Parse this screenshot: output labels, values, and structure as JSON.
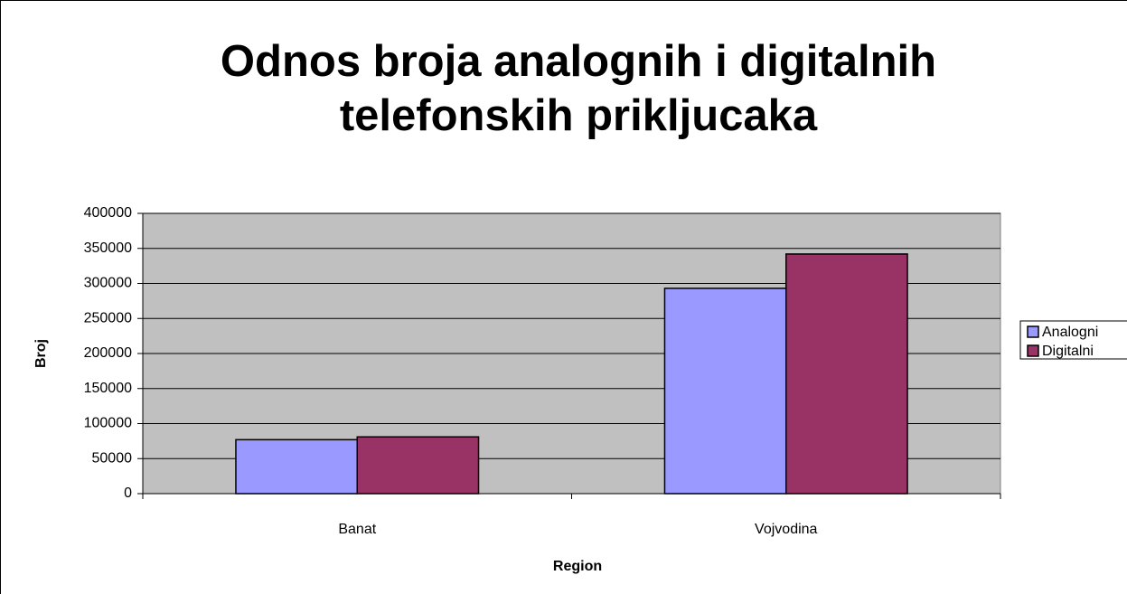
{
  "chart_data": {
    "type": "bar",
    "title": "Odnos broja analognih i digitalnih telefonskih prikljucaka",
    "x_label": "Region",
    "y_label": "Broj",
    "categories": [
      "Banat",
      "Vojvodina"
    ],
    "series": [
      {
        "name": "Analogni",
        "color": "#9999ff",
        "values": [
          77000,
          293000
        ]
      },
      {
        "name": "Digitalni",
        "color": "#993366",
        "values": [
          81000,
          342000
        ]
      }
    ],
    "ylim": [
      0,
      400000
    ],
    "yticks": [
      0,
      50000,
      100000,
      150000,
      200000,
      250000,
      300000,
      350000,
      400000
    ],
    "grid": true,
    "legend": "right"
  }
}
